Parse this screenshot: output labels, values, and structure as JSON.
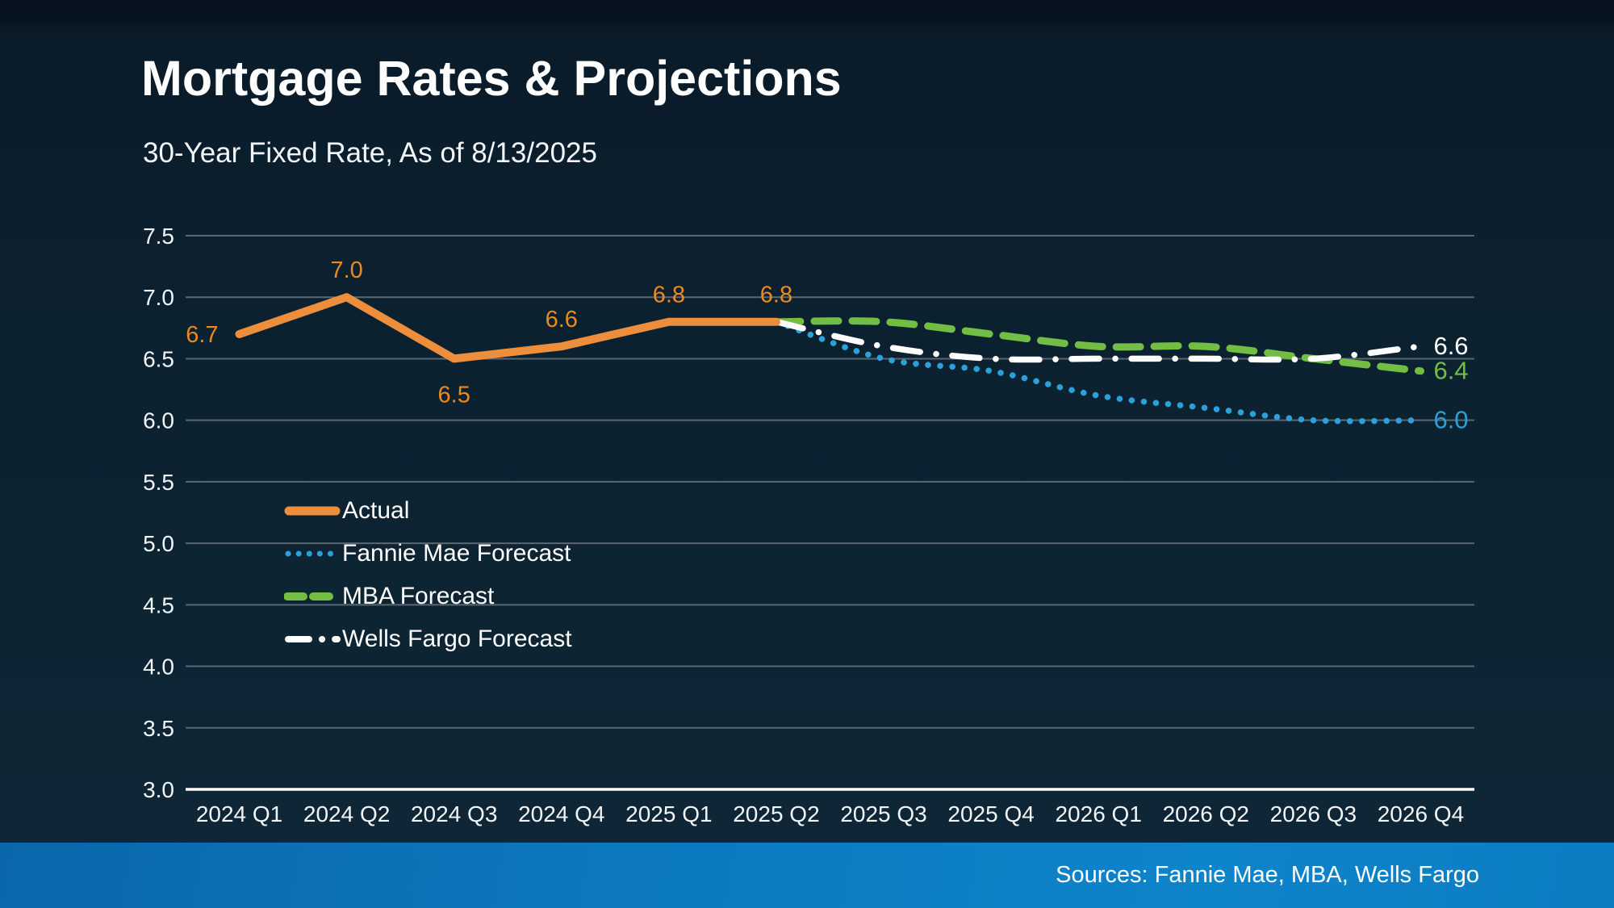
{
  "slide": {
    "title": "Mortgage Rates & Projections",
    "subtitle": "30-Year Fixed Rate, As of 8/13/2025",
    "footer": "Sources: Fannie Mae, MBA, Wells Fargo"
  },
  "colors": {
    "background": "#0c2130",
    "footer_bar": "#0c79bf",
    "gridline": "#5a6772",
    "axis_line": "#ffffff",
    "tick_text": "#f2f6f8",
    "actual": "#ec8e3b",
    "actual_label": "#ec8a1e",
    "fannie": "#2ca0db",
    "mba": "#72bd44",
    "wells": "#ffffff"
  },
  "legend": {
    "items": [
      {
        "label": "Actual",
        "series": "actual",
        "style": "solid"
      },
      {
        "label": "Fannie Mae Forecast",
        "series": "fannie",
        "style": "dotted"
      },
      {
        "label": "MBA Forecast",
        "series": "mba",
        "style": "dashed"
      },
      {
        "label": "Wells Fargo Forecast",
        "series": "wells",
        "style": "dashdot"
      }
    ]
  },
  "chart_data": {
    "type": "line",
    "title": "Mortgage Rates & Projections",
    "subtitle": "30-Year Fixed Rate, As of 8/13/2025",
    "categories": [
      "2024 Q1",
      "2024 Q2",
      "2024 Q3",
      "2024 Q4",
      "2025 Q1",
      "2025 Q2",
      "2025 Q3",
      "2025 Q4",
      "2026 Q1",
      "2026 Q2",
      "2026 Q3",
      "2026 Q4"
    ],
    "ylim": [
      3.0,
      7.5
    ],
    "ytick_step": 0.5,
    "grid": "horizontal",
    "legend_position": "inside-left",
    "series": [
      {
        "name": "Actual",
        "color_key": "actual",
        "style": "solid",
        "smooth": false,
        "values": [
          6.7,
          7.0,
          6.5,
          6.6,
          6.8,
          6.8,
          null,
          null,
          null,
          null,
          null,
          null
        ],
        "point_labels": [
          "6.7",
          "7.0",
          "6.5",
          "6.6",
          "6.8",
          "6.8"
        ]
      },
      {
        "name": "Fannie Mae Forecast",
        "color_key": "fannie",
        "style": "dotted",
        "smooth": true,
        "values": [
          null,
          null,
          null,
          null,
          null,
          6.8,
          6.5,
          6.4,
          6.2,
          6.1,
          6.0,
          6.0
        ],
        "end_label": "6.0"
      },
      {
        "name": "MBA Forecast",
        "color_key": "mba",
        "style": "dashed",
        "smooth": true,
        "values": [
          null,
          null,
          null,
          null,
          null,
          6.8,
          6.8,
          6.7,
          6.6,
          6.6,
          6.5,
          6.4
        ],
        "end_label": "6.4"
      },
      {
        "name": "Wells Fargo Forecast",
        "color_key": "wells",
        "style": "dashdot",
        "smooth": true,
        "values": [
          null,
          null,
          null,
          null,
          null,
          6.8,
          6.6,
          6.5,
          6.5,
          6.5,
          6.5,
          6.6
        ],
        "end_label": "6.6"
      }
    ]
  }
}
